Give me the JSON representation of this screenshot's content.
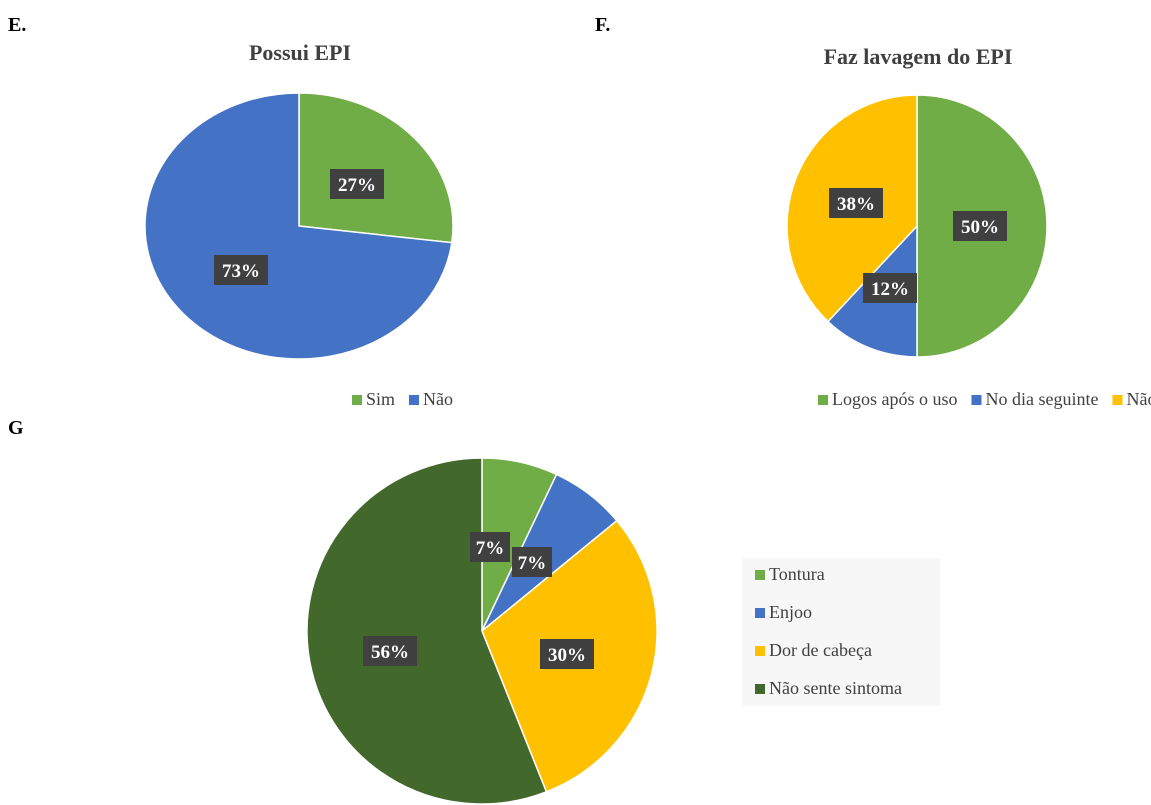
{
  "panels": {
    "e": "E.",
    "f": "F.",
    "g": "G"
  },
  "colors": {
    "green": "#70AD47",
    "blue": "#4472C4",
    "yellow": "#FFC000",
    "dark_green": "#43682B",
    "label_bg": "#404040"
  },
  "chart_data": [
    {
      "type": "pie",
      "title": "Possui EPI",
      "categories": [
        "Sim",
        "Não"
      ],
      "values": [
        27,
        73
      ],
      "labels": [
        "27%",
        "73%"
      ],
      "colors": [
        "#70AD47",
        "#4472C4"
      ],
      "legend": "bottom"
    },
    {
      "type": "pie",
      "title": "Faz lavagem do EPI",
      "categories": [
        "Logos após o uso",
        "No dia seguinte",
        "Não lava"
      ],
      "values": [
        50,
        12,
        38
      ],
      "labels": [
        "50%",
        "12%",
        "38%"
      ],
      "colors": [
        "#70AD47",
        "#4472C4",
        "#FFC000"
      ],
      "legend": "bottom"
    },
    {
      "type": "pie",
      "title": "",
      "categories": [
        "Tontura",
        "Enjoo",
        "Dor de cabeça",
        "Não sente sintoma"
      ],
      "values": [
        7,
        7,
        30,
        56
      ],
      "labels": [
        "7%",
        "7%",
        "30%",
        "56%"
      ],
      "colors": [
        "#70AD47",
        "#4472C4",
        "#FFC000",
        "#43682B"
      ],
      "legend": "right"
    }
  ]
}
